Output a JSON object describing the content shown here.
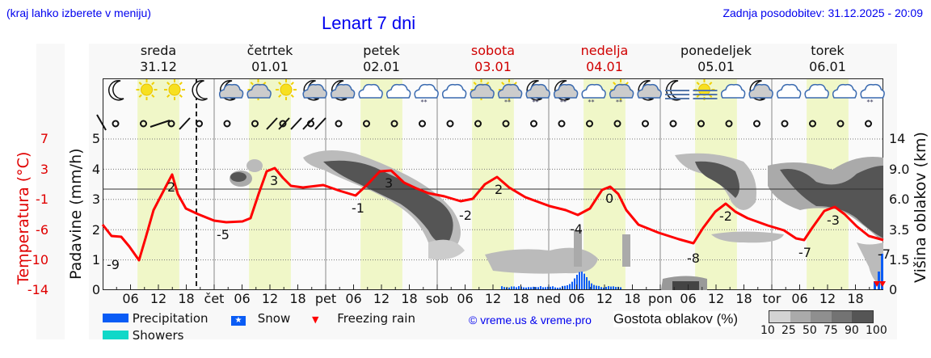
{
  "header": {
    "note": "(kraj lahko izberete v meniju)",
    "title": "Lenart 7 dni",
    "updated": "Zadnja posodobitev: 31.12.2025 - 20:09"
  },
  "days": [
    {
      "name": "sreda",
      "date": "31.12",
      "weekend": false
    },
    {
      "name": "četrtek",
      "date": "01.01",
      "weekend": false
    },
    {
      "name": "petek",
      "date": "02.01",
      "weekend": false
    },
    {
      "name": "sobota",
      "date": "03.01",
      "weekend": true
    },
    {
      "name": "nedelja",
      "date": "04.01",
      "weekend": true
    },
    {
      "name": "ponedeljek",
      "date": "05.01",
      "weekend": false
    },
    {
      "name": "torek",
      "date": "06.01",
      "weekend": false
    }
  ],
  "axes": {
    "left_precip_label": "Padavine (mm/h)",
    "left_temp_label": "Temperatura (°C)",
    "right_label": "Višina oblakov (km)",
    "precip_ticks": [
      "0",
      "1",
      "2",
      "3",
      "4",
      "5"
    ],
    "temp_ticks": [
      "-14",
      "-10",
      "-6",
      "-1",
      "3",
      "7"
    ],
    "cloud_height_ticks": [
      "0",
      "1.5",
      "3.5",
      "6.0",
      "9.0",
      "14"
    ],
    "x_ticks": [
      "06",
      "12",
      "18",
      "čet",
      "06",
      "12",
      "18",
      "pet",
      "06",
      "12",
      "18",
      "sob",
      "06",
      "12",
      "18",
      "ned",
      "06",
      "12",
      "18",
      "pon",
      "06",
      "12",
      "18",
      "tor",
      "06",
      "12",
      "18"
    ]
  },
  "legend": {
    "precipitation": "Precipitation",
    "showers": "Showers",
    "snow": "Snow",
    "freezing_rain": "Freezing rain",
    "credit": "© vreme.us & vreme.pro",
    "cloud_density_label": "Gostota oblakov (%)",
    "cloud_density_ticks": [
      "10",
      "25",
      "50",
      "75",
      "90",
      "100"
    ],
    "colors": {
      "precipitation": "#0a5cf5",
      "showers": "#10d8c8",
      "freezing_rain": "#ff0000",
      "temperature": "#ff0000",
      "daylight": "#f0f7c8"
    }
  },
  "chart_data": {
    "type": "line",
    "title": "Lenart 7 dni",
    "xlabel": "",
    "ylabel": "Temperatura (°C)",
    "ylim": [
      -14,
      7
    ],
    "series": [
      {
        "name": "Temperatura",
        "x_hours": [
          0,
          4,
          7,
          11,
          16,
          22,
          28,
          34,
          40,
          46,
          52,
          58,
          64,
          70,
          76,
          82,
          88,
          94,
          100,
          106,
          112,
          118,
          124,
          130,
          136,
          142,
          148,
          154,
          160
        ],
        "values": [
          -7.5,
          -8,
          -9,
          -1,
          2,
          -3,
          -5,
          -4,
          3,
          1.5,
          0,
          -1,
          2.5,
          -1,
          -2,
          2,
          -1,
          -4,
          0,
          -5,
          -7,
          -8,
          -2,
          -5,
          -6,
          -7,
          -3,
          -6,
          -7
        ]
      }
    ],
    "labeled_extremes": [
      {
        "label": "-9",
        "day": "sreda"
      },
      {
        "label": "2",
        "day": "sreda"
      },
      {
        "label": "-5",
        "day": "četrtek"
      },
      {
        "label": "3",
        "day": "četrtek"
      },
      {
        "label": "-1",
        "day": "petek"
      },
      {
        "label": "3",
        "day": "petek"
      },
      {
        "label": "-2",
        "day": "sobota"
      },
      {
        "label": "2",
        "day": "sobota"
      },
      {
        "label": "-4",
        "day": "nedelja"
      },
      {
        "label": "0",
        "day": "nedelja"
      },
      {
        "label": "-8",
        "day": "ponedeljek"
      },
      {
        "label": "-2",
        "day": "ponedeljek"
      },
      {
        "label": "-7",
        "day": "torek"
      },
      {
        "label": "-3",
        "day": "torek"
      },
      {
        "label": "-7",
        "day": "sreda"
      }
    ],
    "precipitation_mm_h": {
      "note": "light snow Sat night–Sun, peak ~0.7 mm/h Sun morning; small burst end of Tue",
      "peak": 0.7
    },
    "weather_icons": [
      "moon",
      "sun",
      "sun",
      "moon",
      "moon-cloud",
      "sun-cloud",
      "sun",
      "moon-cloud",
      "moon-cloud",
      "cloud",
      "cloud",
      "cloud-snow",
      "cloud",
      "sun-cloud",
      "sun-cloud-snow",
      "moon-cloud-snow",
      "moon-cloud-snow",
      "cloud-snow",
      "sun-cloud-snow",
      "moon-cloud",
      "moon-fog",
      "sun-fog",
      "cloud",
      "moon-cloud",
      "cloud",
      "cloud",
      "cloud",
      "cloud-snow"
    ]
  }
}
